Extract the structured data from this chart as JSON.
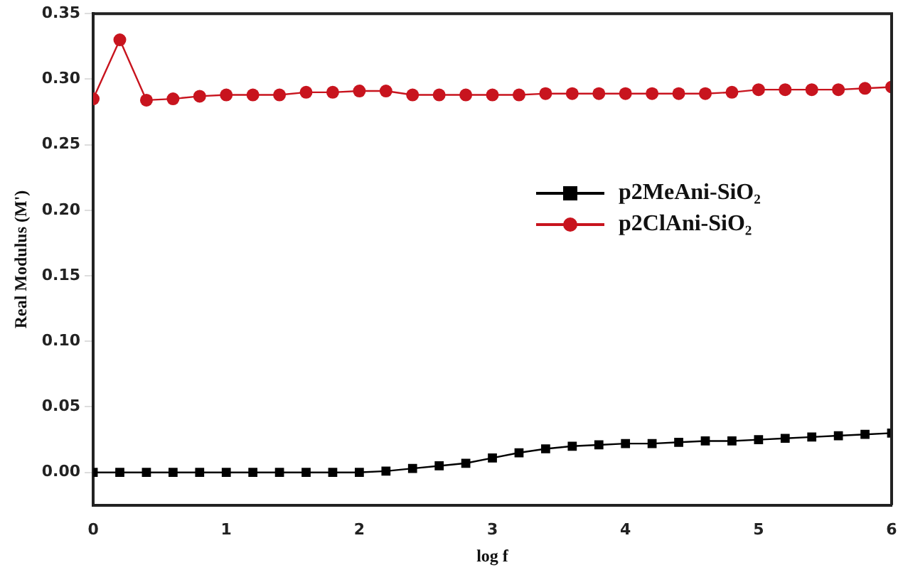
{
  "chart_data": {
    "type": "line",
    "xlabel": "log f",
    "ylabel": "Real Modulus (M')",
    "x": [
      0,
      0.2,
      0.4,
      0.6,
      0.8,
      1,
      1.2,
      1.4,
      1.6,
      1.8,
      2,
      2.2,
      2.4,
      2.6,
      2.8,
      3,
      3.2,
      3.4,
      3.6,
      3.8,
      4,
      4.2,
      4.4,
      4.6,
      4.8,
      5,
      5.2,
      5.4,
      5.6,
      5.8,
      6
    ],
    "series": [
      {
        "name": "p2MeAni-SiO₂",
        "color": "#000000",
        "marker": "square",
        "values": [
          0,
          0,
          0,
          0,
          0,
          0,
          0,
          0,
          0,
          0,
          0,
          0.001,
          0.003,
          0.005,
          0.007,
          0.011,
          0.015,
          0.018,
          0.02,
          0.021,
          0.022,
          0.022,
          0.023,
          0.024,
          0.024,
          0.025,
          0.026,
          0.027,
          0.028,
          0.029,
          0.03
        ]
      },
      {
        "name": "p2ClAni-SiO₂",
        "color": "#c8141e",
        "marker": "circle",
        "values": [
          0.285,
          0.33,
          0.284,
          0.285,
          0.287,
          0.288,
          0.288,
          0.288,
          0.29,
          0.29,
          0.291,
          0.291,
          0.288,
          0.288,
          0.288,
          0.288,
          0.288,
          0.289,
          0.289,
          0.289,
          0.289,
          0.289,
          0.289,
          0.289,
          0.29,
          0.292,
          0.292,
          0.292,
          0.292,
          0.293,
          0.294
        ]
      }
    ],
    "xlim": [
      0,
      6
    ],
    "xticks": [
      0,
      1,
      2,
      3,
      4,
      5,
      6
    ],
    "ylim": [
      -0.025,
      0.35
    ],
    "yticks": [
      {
        "value": 0,
        "label": "0.00"
      },
      {
        "value": 0.05,
        "label": "0.05"
      },
      {
        "value": 0.1,
        "label": "0.10"
      },
      {
        "value": 0.15,
        "label": "0.15"
      },
      {
        "value": 0.2,
        "label": "0.20"
      },
      {
        "value": 0.25,
        "label": "0.25"
      },
      {
        "value": 0.3,
        "label": "0.30"
      },
      {
        "value": 0.35,
        "label": "0.35"
      }
    ],
    "grid": false,
    "legend": "right",
    "line_style": "solid"
  }
}
